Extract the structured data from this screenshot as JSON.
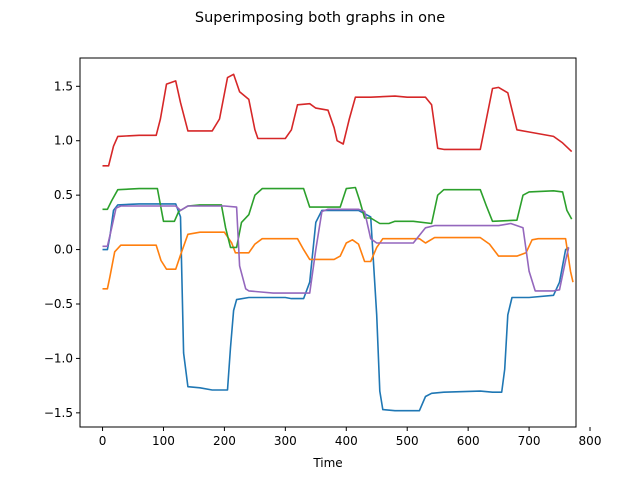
{
  "chart_data": {
    "type": "line",
    "title": "Superimposing both graphs in one",
    "xlabel": "Time",
    "ylabel": "",
    "xlim": [
      -37,
      777
    ],
    "ylim": [
      -1.63,
      1.76
    ],
    "xticks": [
      0,
      100,
      200,
      300,
      400,
      500,
      600,
      700,
      800
    ],
    "yticks": [
      -1.5,
      -1.0,
      -0.5,
      0.0,
      0.5,
      1.0,
      1.5
    ],
    "xtick_labels": [
      "0",
      "100",
      "200",
      "300",
      "400",
      "500",
      "600",
      "700",
      "800"
    ],
    "ytick_labels": [
      "−1.5",
      "−1.0",
      "−0.5",
      "0.0",
      "0.5",
      "1.0",
      "1.5"
    ],
    "grid": false,
    "legend": "none",
    "series": [
      {
        "color": "#1f77b4",
        "points": [
          [
            0,
            0.0
          ],
          [
            8,
            0.0
          ],
          [
            12,
            0.12
          ],
          [
            18,
            0.36
          ],
          [
            25,
            0.41
          ],
          [
            60,
            0.42
          ],
          [
            120,
            0.42
          ],
          [
            128,
            0.3
          ],
          [
            133,
            -0.95
          ],
          [
            140,
            -1.26
          ],
          [
            160,
            -1.27
          ],
          [
            180,
            -1.29
          ],
          [
            205,
            -1.29
          ],
          [
            210,
            -0.9
          ],
          [
            215,
            -0.56
          ],
          [
            220,
            -0.46
          ],
          [
            240,
            -0.44
          ],
          [
            300,
            -0.44
          ],
          [
            310,
            -0.45
          ],
          [
            330,
            -0.45
          ],
          [
            340,
            -0.3
          ],
          [
            350,
            0.25
          ],
          [
            360,
            0.36
          ],
          [
            400,
            0.36
          ],
          [
            420,
            0.36
          ],
          [
            440,
            0.3
          ],
          [
            450,
            -0.6
          ],
          [
            455,
            -1.3
          ],
          [
            460,
            -1.47
          ],
          [
            480,
            -1.48
          ],
          [
            520,
            -1.48
          ],
          [
            530,
            -1.35
          ],
          [
            540,
            -1.32
          ],
          [
            560,
            -1.31
          ],
          [
            620,
            -1.3
          ],
          [
            640,
            -1.31
          ],
          [
            655,
            -1.31
          ],
          [
            660,
            -1.1
          ],
          [
            665,
            -0.6
          ],
          [
            672,
            -0.44
          ],
          [
            700,
            -0.44
          ],
          [
            740,
            -0.42
          ],
          [
            750,
            -0.3
          ],
          [
            760,
            0.0
          ],
          [
            765,
            0.02
          ]
        ]
      },
      {
        "color": "#ff7f0e",
        "points": [
          [
            0,
            -0.36
          ],
          [
            8,
            -0.36
          ],
          [
            12,
            -0.25
          ],
          [
            20,
            -0.02
          ],
          [
            30,
            0.04
          ],
          [
            60,
            0.04
          ],
          [
            88,
            0.04
          ],
          [
            96,
            -0.1
          ],
          [
            105,
            -0.18
          ],
          [
            120,
            -0.18
          ],
          [
            128,
            -0.05
          ],
          [
            140,
            0.14
          ],
          [
            160,
            0.16
          ],
          [
            200,
            0.16
          ],
          [
            212,
            0.06
          ],
          [
            218,
            -0.03
          ],
          [
            240,
            -0.03
          ],
          [
            250,
            0.05
          ],
          [
            262,
            0.1
          ],
          [
            320,
            0.1
          ],
          [
            330,
            0.0
          ],
          [
            340,
            -0.09
          ],
          [
            380,
            -0.09
          ],
          [
            390,
            -0.06
          ],
          [
            400,
            0.06
          ],
          [
            410,
            0.09
          ],
          [
            420,
            0.05
          ],
          [
            430,
            -0.11
          ],
          [
            440,
            -0.11
          ],
          [
            450,
            0.02
          ],
          [
            460,
            0.1
          ],
          [
            520,
            0.1
          ],
          [
            530,
            0.06
          ],
          [
            545,
            0.11
          ],
          [
            600,
            0.11
          ],
          [
            620,
            0.11
          ],
          [
            635,
            0.05
          ],
          [
            650,
            -0.06
          ],
          [
            680,
            -0.06
          ],
          [
            695,
            -0.03
          ],
          [
            705,
            0.09
          ],
          [
            715,
            0.1
          ],
          [
            760,
            0.1
          ],
          [
            768,
            -0.2
          ],
          [
            772,
            -0.3
          ]
        ]
      },
      {
        "color": "#2ca02c",
        "points": [
          [
            0,
            0.37
          ],
          [
            8,
            0.37
          ],
          [
            15,
            0.45
          ],
          [
            25,
            0.55
          ],
          [
            60,
            0.56
          ],
          [
            90,
            0.56
          ],
          [
            100,
            0.26
          ],
          [
            118,
            0.26
          ],
          [
            125,
            0.35
          ],
          [
            140,
            0.4
          ],
          [
            160,
            0.41
          ],
          [
            195,
            0.41
          ],
          [
            202,
            0.2
          ],
          [
            210,
            0.02
          ],
          [
            220,
            0.02
          ],
          [
            228,
            0.25
          ],
          [
            240,
            0.32
          ],
          [
            250,
            0.5
          ],
          [
            262,
            0.56
          ],
          [
            330,
            0.56
          ],
          [
            340,
            0.39
          ],
          [
            390,
            0.39
          ],
          [
            400,
            0.56
          ],
          [
            415,
            0.57
          ],
          [
            422,
            0.45
          ],
          [
            430,
            0.29
          ],
          [
            440,
            0.29
          ],
          [
            455,
            0.24
          ],
          [
            470,
            0.24
          ],
          [
            480,
            0.26
          ],
          [
            510,
            0.26
          ],
          [
            540,
            0.24
          ],
          [
            550,
            0.5
          ],
          [
            560,
            0.55
          ],
          [
            620,
            0.55
          ],
          [
            630,
            0.4
          ],
          [
            640,
            0.26
          ],
          [
            680,
            0.27
          ],
          [
            690,
            0.5
          ],
          [
            700,
            0.53
          ],
          [
            740,
            0.54
          ],
          [
            755,
            0.53
          ],
          [
            762,
            0.36
          ],
          [
            770,
            0.28
          ]
        ]
      },
      {
        "color": "#d62728",
        "points": [
          [
            0,
            0.77
          ],
          [
            10,
            0.77
          ],
          [
            18,
            0.95
          ],
          [
            25,
            1.04
          ],
          [
            60,
            1.05
          ],
          [
            88,
            1.05
          ],
          [
            95,
            1.2
          ],
          [
            105,
            1.52
          ],
          [
            120,
            1.55
          ],
          [
            128,
            1.35
          ],
          [
            140,
            1.09
          ],
          [
            180,
            1.09
          ],
          [
            192,
            1.2
          ],
          [
            205,
            1.58
          ],
          [
            215,
            1.61
          ],
          [
            225,
            1.45
          ],
          [
            240,
            1.38
          ],
          [
            250,
            1.1
          ],
          [
            255,
            1.02
          ],
          [
            300,
            1.02
          ],
          [
            310,
            1.1
          ],
          [
            320,
            1.33
          ],
          [
            340,
            1.34
          ],
          [
            350,
            1.3
          ],
          [
            370,
            1.28
          ],
          [
            380,
            1.12
          ],
          [
            385,
            1.0
          ],
          [
            395,
            0.97
          ],
          [
            405,
            1.2
          ],
          [
            415,
            1.4
          ],
          [
            440,
            1.4
          ],
          [
            480,
            1.41
          ],
          [
            500,
            1.4
          ],
          [
            530,
            1.4
          ],
          [
            540,
            1.33
          ],
          [
            550,
            0.93
          ],
          [
            560,
            0.92
          ],
          [
            620,
            0.92
          ],
          [
            630,
            1.2
          ],
          [
            640,
            1.48
          ],
          [
            650,
            1.49
          ],
          [
            665,
            1.44
          ],
          [
            680,
            1.1
          ],
          [
            700,
            1.08
          ],
          [
            740,
            1.04
          ],
          [
            755,
            0.98
          ],
          [
            770,
            0.9
          ]
        ]
      },
      {
        "color": "#9467bd",
        "points": [
          [
            0,
            0.03
          ],
          [
            8,
            0.03
          ],
          [
            15,
            0.2
          ],
          [
            22,
            0.38
          ],
          [
            30,
            0.4
          ],
          [
            60,
            0.4
          ],
          [
            120,
            0.4
          ],
          [
            128,
            0.36
          ],
          [
            140,
            0.4
          ],
          [
            200,
            0.4
          ],
          [
            220,
            0.39
          ],
          [
            225,
            -0.15
          ],
          [
            235,
            -0.36
          ],
          [
            240,
            -0.38
          ],
          [
            260,
            -0.39
          ],
          [
            280,
            -0.4
          ],
          [
            340,
            -0.4
          ],
          [
            350,
            0.0
          ],
          [
            360,
            0.35
          ],
          [
            370,
            0.37
          ],
          [
            420,
            0.37
          ],
          [
            430,
            0.35
          ],
          [
            440,
            0.1
          ],
          [
            450,
            0.06
          ],
          [
            510,
            0.06
          ],
          [
            530,
            0.2
          ],
          [
            545,
            0.22
          ],
          [
            600,
            0.22
          ],
          [
            650,
            0.22
          ],
          [
            670,
            0.24
          ],
          [
            690,
            0.2
          ],
          [
            700,
            -0.2
          ],
          [
            710,
            -0.38
          ],
          [
            740,
            -0.38
          ],
          [
            750,
            -0.37
          ],
          [
            760,
            -0.1
          ],
          [
            765,
            0.02
          ]
        ]
      }
    ]
  }
}
